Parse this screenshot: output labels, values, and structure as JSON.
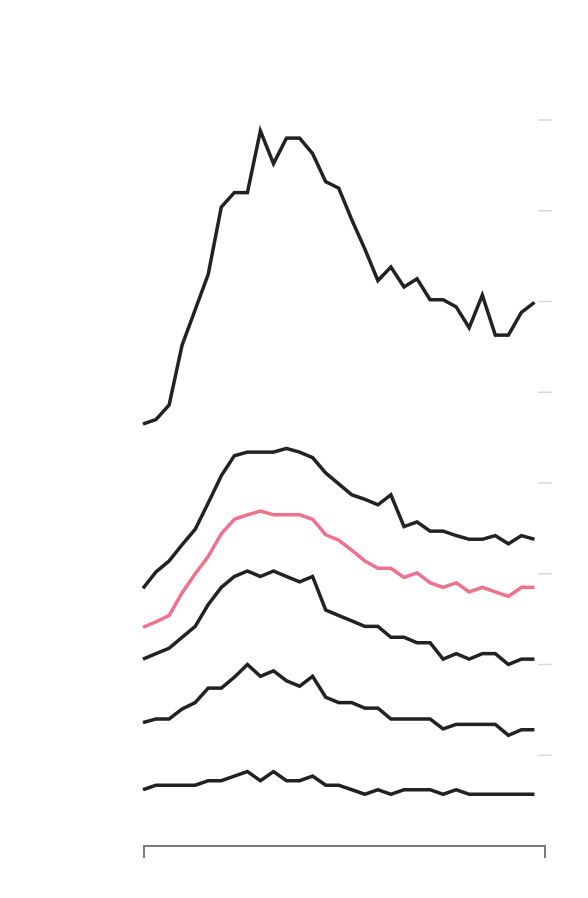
{
  "chart_data": {
    "type": "line",
    "title": "",
    "xlabel": "",
    "ylabel": "",
    "x": [
      0,
      1,
      2,
      3,
      4,
      5,
      6,
      7,
      8,
      9,
      10,
      11,
      12,
      13,
      14,
      15,
      16,
      17,
      18,
      19,
      20,
      21,
      22,
      23,
      24,
      25,
      26,
      27,
      28,
      29,
      30
    ],
    "xlim": [
      0,
      30.5
    ],
    "ylim": [
      0,
      8
    ],
    "yticks": [
      1,
      2,
      3,
      4,
      5,
      6,
      7,
      8
    ],
    "grid": false,
    "legend": "none",
    "series": [
      {
        "color": "#222222",
        "values": [
          4.65,
          4.7,
          4.86,
          5.52,
          5.91,
          6.3,
          7.04,
          7.2,
          7.2,
          7.88,
          7.52,
          7.8,
          7.8,
          7.63,
          7.32,
          7.25,
          6.9,
          6.58,
          6.23,
          6.38,
          6.16,
          6.25,
          6.02,
          6.02,
          5.94,
          5.71,
          6.07,
          5.63,
          5.63,
          5.88,
          5.99
        ]
      },
      {
        "color": "#222222",
        "values": [
          2.84,
          3.02,
          3.14,
          3.32,
          3.49,
          3.78,
          4.08,
          4.3,
          4.34,
          4.34,
          4.34,
          4.38,
          4.34,
          4.28,
          4.11,
          3.99,
          3.87,
          3.82,
          3.76,
          3.87,
          3.52,
          3.57,
          3.47,
          3.47,
          3.42,
          3.38,
          3.38,
          3.42,
          3.33,
          3.42,
          3.38
        ]
      },
      {
        "color": "#f0718b",
        "values": [
          2.41,
          2.47,
          2.54,
          2.79,
          3.0,
          3.19,
          3.44,
          3.6,
          3.65,
          3.69,
          3.65,
          3.65,
          3.65,
          3.6,
          3.43,
          3.37,
          3.26,
          3.14,
          3.06,
          3.06,
          2.96,
          3.01,
          2.9,
          2.85,
          2.9,
          2.8,
          2.85,
          2.8,
          2.75,
          2.85,
          2.85
        ]
      },
      {
        "color": "#222222",
        "values": [
          2.06,
          2.12,
          2.18,
          2.3,
          2.42,
          2.66,
          2.85,
          2.97,
          3.03,
          2.97,
          3.03,
          2.97,
          2.91,
          2.97,
          2.6,
          2.54,
          2.48,
          2.42,
          2.42,
          2.3,
          2.3,
          2.24,
          2.24,
          2.06,
          2.12,
          2.06,
          2.12,
          2.12,
          2.0,
          2.06,
          2.06
        ]
      },
      {
        "color": "#222222",
        "values": [
          1.36,
          1.4,
          1.4,
          1.51,
          1.58,
          1.74,
          1.74,
          1.86,
          2.0,
          1.87,
          1.93,
          1.82,
          1.76,
          1.87,
          1.64,
          1.58,
          1.58,
          1.52,
          1.52,
          1.4,
          1.4,
          1.4,
          1.4,
          1.29,
          1.34,
          1.34,
          1.34,
          1.34,
          1.22,
          1.28,
          1.28
        ]
      },
      {
        "color": "#222222",
        "values": [
          0.62,
          0.67,
          0.67,
          0.67,
          0.67,
          0.72,
          0.72,
          0.77,
          0.82,
          0.72,
          0.82,
          0.72,
          0.72,
          0.77,
          0.67,
          0.67,
          0.62,
          0.57,
          0.62,
          0.57,
          0.62,
          0.62,
          0.62,
          0.57,
          0.62,
          0.57,
          0.57,
          0.57,
          0.57,
          0.57,
          0.57
        ]
      }
    ]
  }
}
